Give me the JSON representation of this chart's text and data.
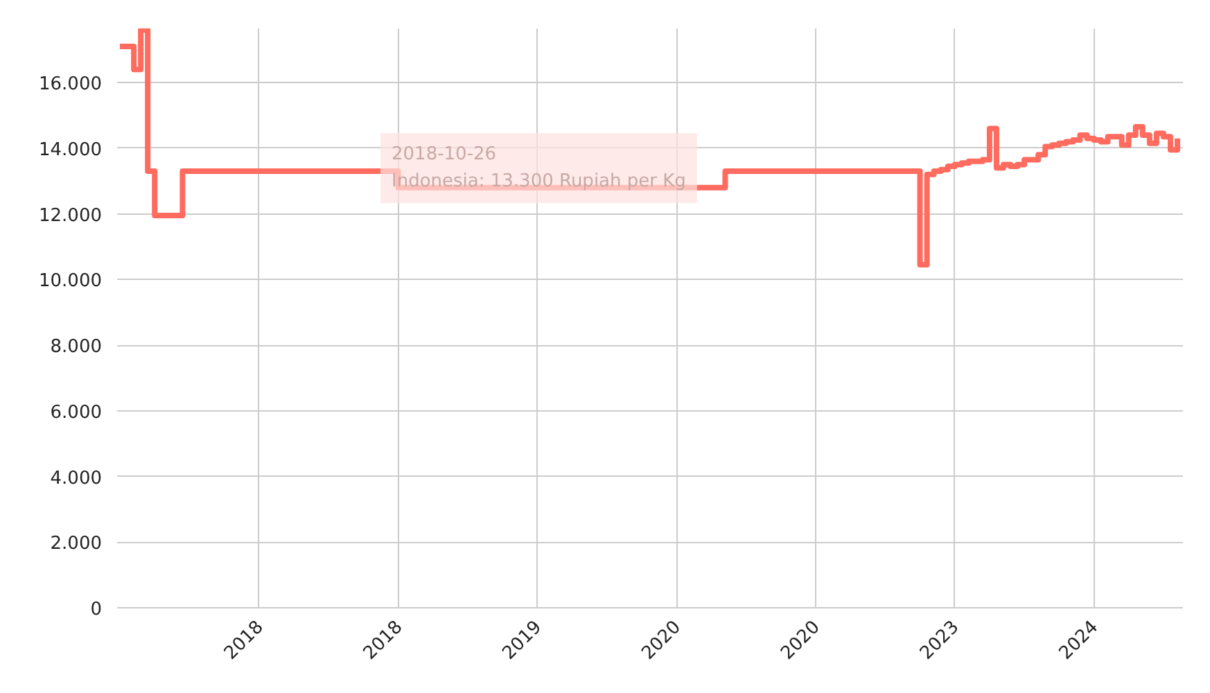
{
  "chart_data": {
    "type": "step",
    "ylim": [
      0,
      17650
    ],
    "yticks": [
      {
        "value": 0,
        "label": "0"
      },
      {
        "value": 2000,
        "label": "2.000"
      },
      {
        "value": 4000,
        "label": "4.000"
      },
      {
        "value": 6000,
        "label": "6.000"
      },
      {
        "value": 8000,
        "label": "8.000"
      },
      {
        "value": 10000,
        "label": "10.000"
      },
      {
        "value": 12000,
        "label": "12.000"
      },
      {
        "value": 14000,
        "label": "14.000"
      },
      {
        "value": 16000,
        "label": "16.000"
      }
    ],
    "grid": true,
    "annotations": [
      "2018-10-26\nIndonesia: 13.300 Rupiah per Kg"
    ],
    "categories": [
      null,
      null,
      null,
      null,
      null,
      null,
      null,
      null,
      null,
      null,
      null,
      null,
      null,
      null,
      null,
      null,
      null,
      null,
      null,
      null,
      "2018",
      null,
      null,
      null,
      null,
      null,
      null,
      null,
      null,
      null,
      null,
      null,
      null,
      null,
      null,
      null,
      null,
      null,
      null,
      null,
      "2018",
      null,
      null,
      null,
      null,
      null,
      null,
      null,
      null,
      null,
      null,
      null,
      null,
      null,
      null,
      null,
      null,
      null,
      null,
      null,
      "2019",
      null,
      null,
      null,
      null,
      null,
      null,
      null,
      null,
      null,
      null,
      null,
      null,
      null,
      null,
      null,
      null,
      null,
      null,
      null,
      "2020",
      null,
      null,
      null,
      null,
      null,
      null,
      null,
      null,
      null,
      null,
      null,
      null,
      null,
      null,
      null,
      null,
      null,
      null,
      null,
      "2020",
      null,
      null,
      null,
      null,
      null,
      null,
      null,
      null,
      null,
      null,
      null,
      null,
      null,
      null,
      null,
      null,
      null,
      null,
      null,
      "2023",
      null,
      null,
      null,
      null,
      null,
      null,
      null,
      null,
      null,
      null,
      null,
      null,
      null,
      null,
      null,
      null,
      null,
      null,
      null,
      "2024",
      null,
      null,
      null,
      null,
      null,
      null,
      null,
      null,
      null,
      null,
      null,
      null
    ],
    "series": [
      {
        "color": "#ff6b5e",
        "values": [
          17100,
          17100,
          16400,
          17600,
          13300,
          11950,
          11950,
          11950,
          11950,
          13300,
          13300,
          13300,
          13300,
          13300,
          13300,
          13300,
          13300,
          13300,
          13300,
          13300,
          13300,
          13300,
          13300,
          13300,
          13300,
          13300,
          13300,
          13300,
          13300,
          13300,
          13300,
          13300,
          13300,
          13300,
          13300,
          13300,
          13300,
          13300,
          13300,
          13300,
          12800,
          12800,
          12800,
          12800,
          12800,
          12800,
          12800,
          12800,
          12800,
          12800,
          12800,
          12800,
          12800,
          12800,
          12800,
          12800,
          12800,
          12800,
          12800,
          12800,
          12800,
          12800,
          12800,
          12800,
          12800,
          12800,
          12800,
          12800,
          12800,
          12800,
          12800,
          12800,
          12800,
          12800,
          12800,
          12800,
          12800,
          12800,
          12800,
          12800,
          12800,
          12800,
          12800,
          12800,
          12800,
          12800,
          12800,
          13300,
          13300,
          13300,
          13300,
          13300,
          13300,
          13300,
          13300,
          13300,
          13300,
          13300,
          13300,
          13300,
          13300,
          13300,
          13300,
          13300,
          13300,
          13300,
          13300,
          13300,
          13300,
          13300,
          13300,
          13300,
          13300,
          13300,
          13300,
          10450,
          13200,
          13300,
          13350,
          13450,
          13500,
          13550,
          13600,
          13600,
          13650,
          14600,
          13400,
          13500,
          13450,
          13500,
          13650,
          13650,
          13800,
          14050,
          14100,
          14150,
          14200,
          14250,
          14400,
          14300,
          14250,
          14200,
          14350,
          14350,
          14100,
          14400,
          14650,
          14400,
          14150,
          14450,
          14350,
          13950,
          14300
        ]
      }
    ]
  }
}
